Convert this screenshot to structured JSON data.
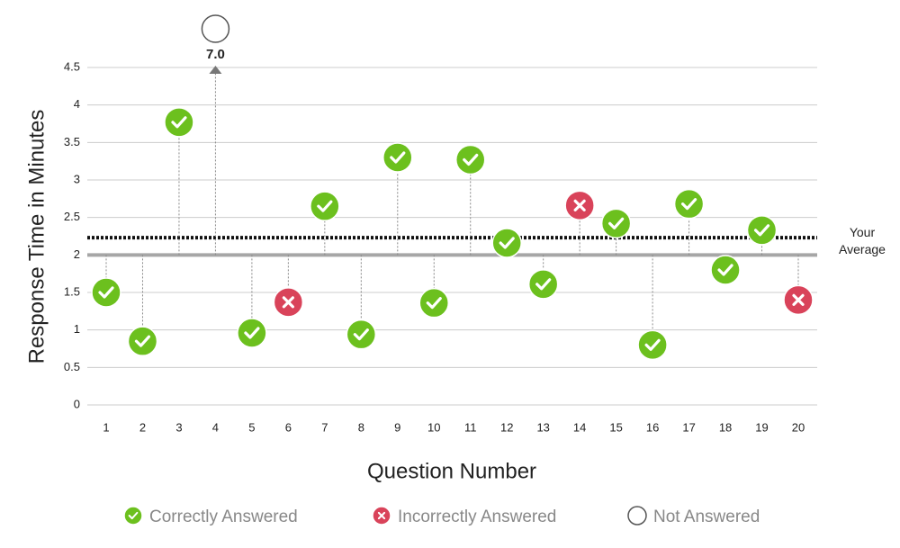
{
  "chart_data": {
    "type": "scatter",
    "x_label": "Question Number",
    "y_label": "Response Time in Minutes",
    "categories": [
      "1",
      "2",
      "3",
      "4",
      "5",
      "6",
      "7",
      "8",
      "9",
      "10",
      "11",
      "12",
      "13",
      "14",
      "15",
      "16",
      "17",
      "18",
      "19",
      "20"
    ],
    "series": [
      {
        "name": "Correctly Answered",
        "color": "#6cc01e",
        "values": [
          1.5,
          0.85,
          3.77,
          null,
          0.96,
          null,
          2.65,
          0.94,
          3.3,
          1.36,
          3.27,
          2.16,
          1.61,
          null,
          2.42,
          0.8,
          2.68,
          1.8,
          2.33,
          null
        ]
      },
      {
        "name": "Incorrectly Answered",
        "color": "#d9435a",
        "values": [
          null,
          null,
          null,
          null,
          null,
          1.37,
          null,
          null,
          null,
          null,
          null,
          null,
          null,
          2.66,
          null,
          null,
          null,
          null,
          null,
          1.4
        ]
      },
      {
        "name": "Not Answered",
        "color": "#555555",
        "values": [
          null,
          null,
          null,
          7.0,
          null,
          null,
          null,
          null,
          null,
          null,
          null,
          null,
          null,
          null,
          null,
          null,
          null,
          null,
          null,
          null
        ],
        "value_labels": [
          null,
          null,
          null,
          "7.0",
          null,
          null,
          null,
          null,
          null,
          null,
          null,
          null,
          null,
          null,
          null,
          null,
          null,
          null,
          null,
          null
        ]
      }
    ],
    "baseline": 2,
    "average": {
      "label": "Your Average",
      "value": 2.23
    },
    "ylim": [
      0,
      4.5
    ],
    "yticks": [
      0,
      0.5,
      1,
      1.5,
      2,
      2.5,
      3,
      3.5,
      4,
      4.5
    ],
    "grid": true
  }
}
